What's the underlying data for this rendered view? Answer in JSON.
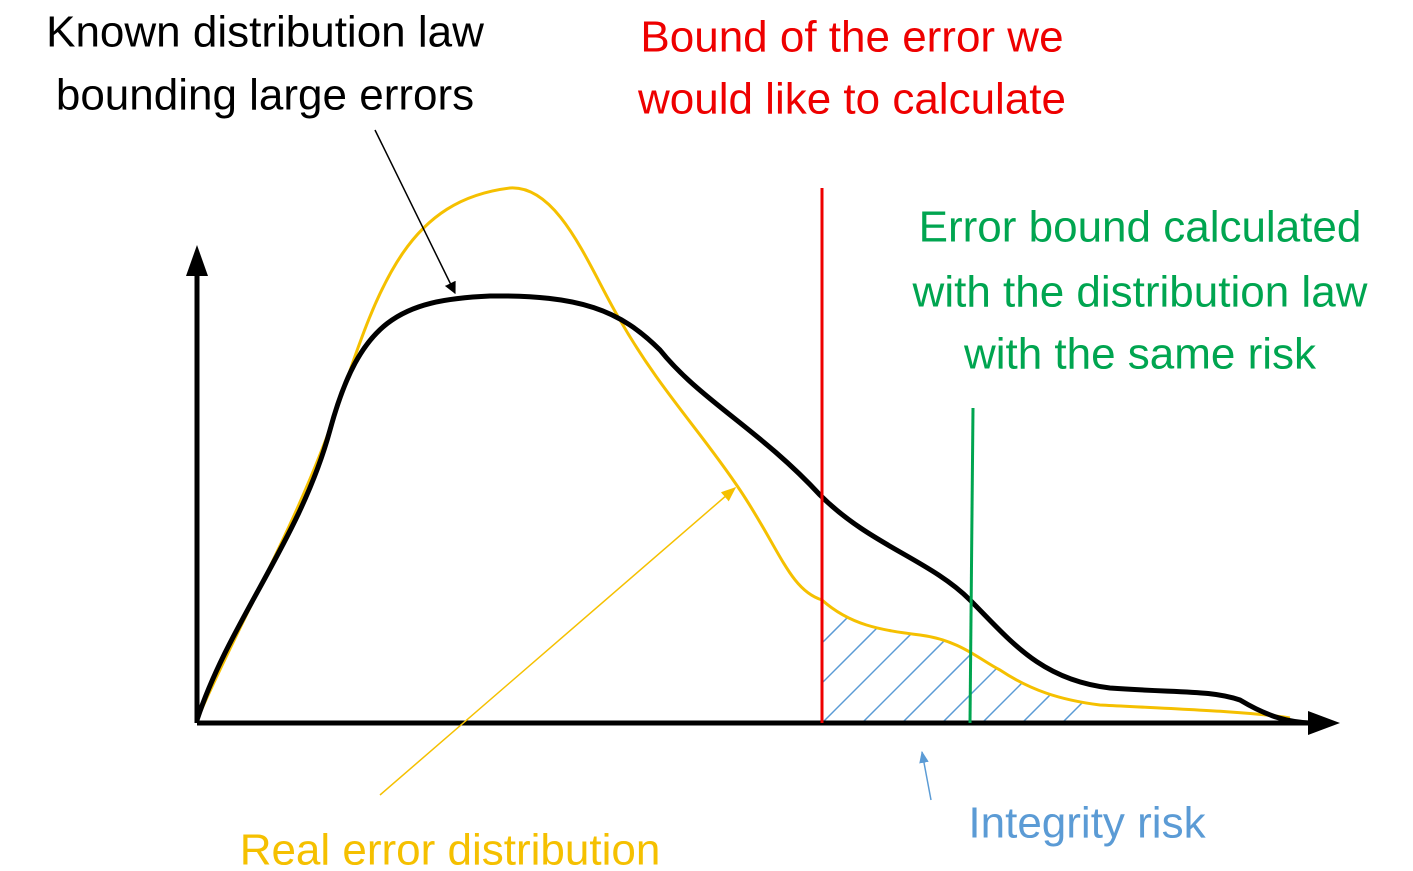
{
  "labels": {
    "known_law": [
      "Known distribution law",
      "bounding large errors"
    ],
    "bound": [
      "Bound of the error we",
      "would like to calculate"
    ],
    "calculated": [
      "Error bound calculated",
      "with the distribution law",
      "with the same risk"
    ],
    "real": "Real error distribution",
    "risk": "Integrity risk"
  }
}
